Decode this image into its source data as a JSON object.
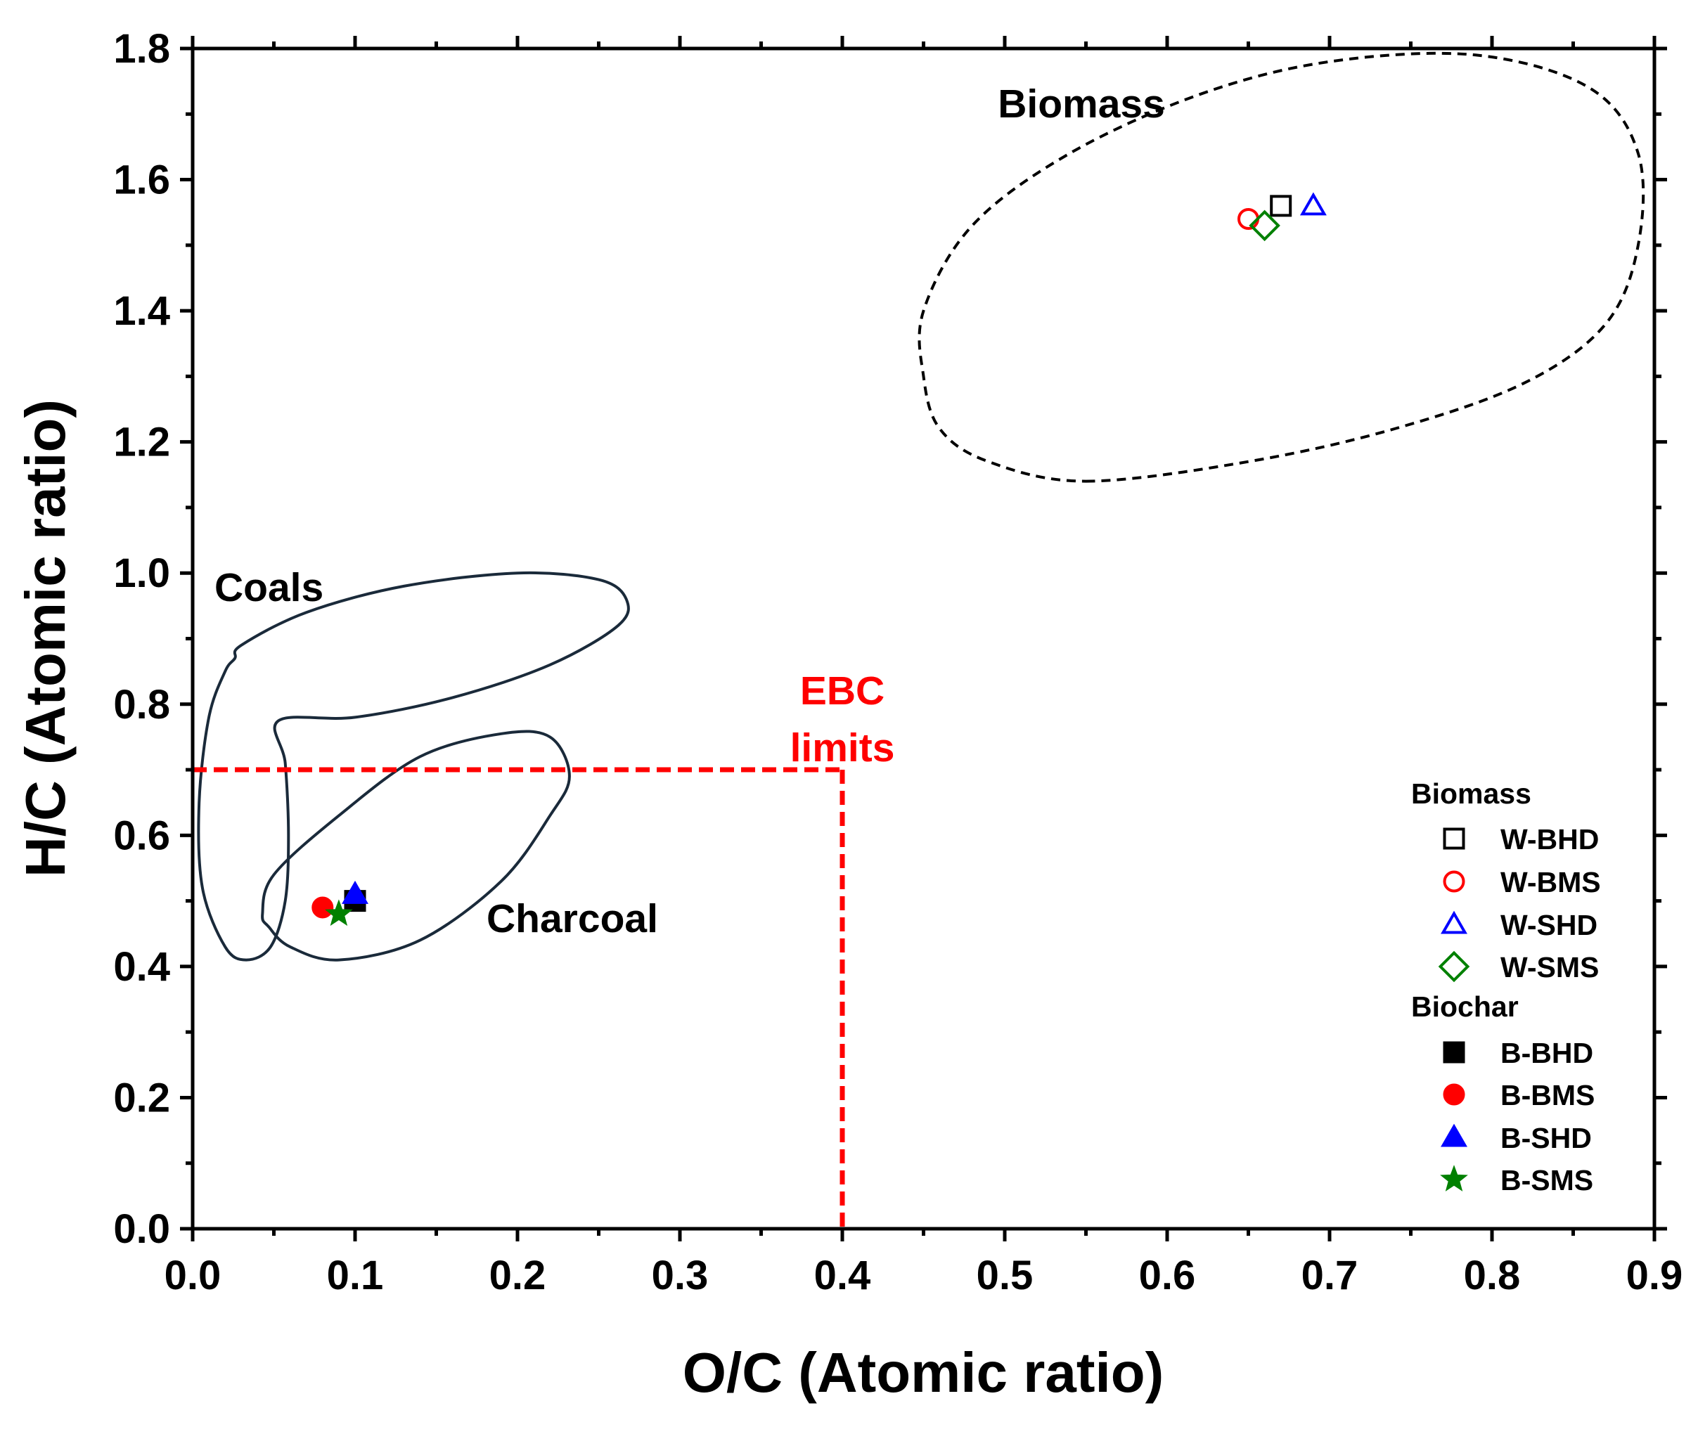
{
  "chart_data": {
    "type": "scatter",
    "title": "",
    "xlabel": "O/C (Atomic ratio)",
    "ylabel": "H/C (Atomic ratio)",
    "xlim": [
      0.0,
      0.9
    ],
    "ylim": [
      0.0,
      1.8
    ],
    "x_ticks": [
      "0.0",
      "0.1",
      "0.2",
      "0.3",
      "0.4",
      "0.5",
      "0.6",
      "0.7",
      "0.8",
      "0.9"
    ],
    "y_ticks": [
      "0.0",
      "0.2",
      "0.4",
      "0.6",
      "0.8",
      "1.0",
      "1.2",
      "1.4",
      "1.6",
      "1.8"
    ],
    "grid": false,
    "legend_placement": "lower-right",
    "legend_groups": [
      {
        "title": "Biomass",
        "series_names": [
          "W-BHD",
          "W-BMS",
          "W-SHD",
          "W-SMS"
        ]
      },
      {
        "title": "Biochar",
        "series_names": [
          "B-BHD",
          "B-BMS",
          "B-SHD",
          "B-SMS"
        ]
      }
    ],
    "series": [
      {
        "name": "W-BHD",
        "marker": "square",
        "filled": false,
        "color": "#000000",
        "x": 0.67,
        "y": 1.56
      },
      {
        "name": "W-BMS",
        "marker": "circle",
        "filled": false,
        "color": "#ff0000",
        "x": 0.65,
        "y": 1.54
      },
      {
        "name": "W-SHD",
        "marker": "triangle",
        "filled": false,
        "color": "#0000ff",
        "x": 0.69,
        "y": 1.56
      },
      {
        "name": "W-SMS",
        "marker": "diamond",
        "filled": false,
        "color": "#008000",
        "x": 0.66,
        "y": 1.53
      },
      {
        "name": "B-BHD",
        "marker": "square",
        "filled": true,
        "color": "#000000",
        "x": 0.1,
        "y": 0.5
      },
      {
        "name": "B-BMS",
        "marker": "circle",
        "filled": true,
        "color": "#ff0000",
        "x": 0.08,
        "y": 0.49
      },
      {
        "name": "B-SHD",
        "marker": "triangle",
        "filled": true,
        "color": "#0000ff",
        "x": 0.1,
        "y": 0.51
      },
      {
        "name": "B-SMS",
        "marker": "star",
        "filled": true,
        "color": "#008000",
        "x": 0.09,
        "y": 0.48
      }
    ],
    "regions": [
      {
        "label": "Biomass",
        "style": "dashed",
        "color": "#000000",
        "label_at": [
          0.55,
          1.73
        ],
        "path": [
          [
            0.55,
            1.14
          ],
          [
            0.65,
            1.17
          ],
          [
            0.74,
            1.22
          ],
          [
            0.82,
            1.29
          ],
          [
            0.87,
            1.38
          ],
          [
            0.89,
            1.5
          ],
          [
            0.89,
            1.64
          ],
          [
            0.86,
            1.74
          ],
          [
            0.79,
            1.79
          ],
          [
            0.7,
            1.78
          ],
          [
            0.62,
            1.73
          ],
          [
            0.54,
            1.64
          ],
          [
            0.48,
            1.53
          ],
          [
            0.45,
            1.4
          ],
          [
            0.45,
            1.3
          ],
          [
            0.46,
            1.22
          ],
          [
            0.49,
            1.17
          ],
          [
            0.55,
            1.14
          ]
        ]
      },
      {
        "label": "Coals",
        "style": "solid",
        "color": "#1a2a3a",
        "label_at": [
          0.015,
          0.98
        ],
        "path": [
          [
            0.026,
            0.87
          ],
          [
            0.03,
            0.89
          ],
          [
            0.07,
            0.94
          ],
          [
            0.13,
            0.98
          ],
          [
            0.2,
            1.0
          ],
          [
            0.25,
            0.99
          ],
          [
            0.267,
            0.96
          ],
          [
            0.262,
            0.92
          ],
          [
            0.22,
            0.86
          ],
          [
            0.16,
            0.81
          ],
          [
            0.1,
            0.78
          ],
          [
            0.053,
            0.775
          ],
          [
            0.057,
            0.71
          ],
          [
            0.059,
            0.6
          ],
          [
            0.057,
            0.5
          ],
          [
            0.048,
            0.43
          ],
          [
            0.033,
            0.41
          ],
          [
            0.02,
            0.43
          ],
          [
            0.006,
            0.52
          ],
          [
            0.004,
            0.65
          ],
          [
            0.01,
            0.78
          ],
          [
            0.02,
            0.85
          ],
          [
            0.026,
            0.87
          ]
        ]
      },
      {
        "label": "Charcoal",
        "style": "solid",
        "color": "#1a2a3a",
        "label_at": [
          0.18,
          0.475
        ],
        "path": [
          [
            0.047,
            0.46
          ],
          [
            0.06,
            0.43
          ],
          [
            0.09,
            0.41
          ],
          [
            0.14,
            0.44
          ],
          [
            0.19,
            0.53
          ],
          [
            0.22,
            0.63
          ],
          [
            0.232,
            0.69
          ],
          [
            0.22,
            0.75
          ],
          [
            0.19,
            0.755
          ],
          [
            0.14,
            0.72
          ],
          [
            0.09,
            0.63
          ],
          [
            0.05,
            0.54
          ],
          [
            0.043,
            0.48
          ],
          [
            0.047,
            0.46
          ]
        ]
      }
    ],
    "ebc_limits": {
      "label_line1": "EBC",
      "label_line2": "limits",
      "color": "#ff0000",
      "label_at": [
        0.4,
        0.76
      ],
      "oc_max": 0.4,
      "hc_max": 0.7
    }
  }
}
